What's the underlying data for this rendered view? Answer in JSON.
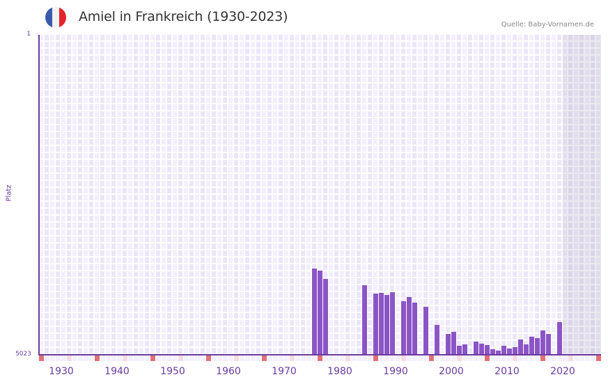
{
  "header": {
    "title": "Amiel in Frankreich (1930-2023)",
    "source": "Quelle: Baby-Vornamen.de",
    "flag_colors": [
      "#3a5ba9",
      "#f2f2f2",
      "#e3242b"
    ]
  },
  "colors": {
    "bar": "#8b55c6",
    "axis": "#6a3aa0",
    "decade_marker": "#e07078",
    "half_decade_marker": "#f6dbe3"
  },
  "chart_data": {
    "type": "bar",
    "title": "Amiel in Frankreich (1930-2023)",
    "xlabel": "",
    "ylabel": "Platz",
    "y_inverted": true,
    "ylim": [
      1,
      5023
    ],
    "y_ticks": [
      "1",
      "5023"
    ],
    "x_ticks": [
      "1930",
      "1940",
      "1950",
      "1960",
      "1970",
      "1980",
      "1990",
      "2000",
      "2010",
      "2020"
    ],
    "xlim": [
      1928,
      2028
    ],
    "grid": true,
    "shaded_region": {
      "from": 2022,
      "to": 2028
    },
    "categories": [
      1977,
      1978,
      1979,
      1986,
      1988,
      1989,
      1990,
      1991,
      1993,
      1994,
      1995,
      1997,
      1999,
      2001,
      2002,
      2003,
      2004,
      2006,
      2007,
      2008,
      2009,
      2010,
      2011,
      2012,
      2013,
      2014,
      2015,
      2016,
      2017,
      2018,
      2019,
      2021
    ],
    "values": [
      3669,
      3702,
      3833,
      3931,
      4062,
      4051,
      4084,
      4040,
      4182,
      4117,
      4204,
      4270,
      4553,
      4695,
      4663,
      4881,
      4859,
      4815,
      4848,
      4870,
      4935,
      4957,
      4881,
      4924,
      4903,
      4783,
      4859,
      4739,
      4761,
      4641,
      4695,
      4510
    ]
  }
}
